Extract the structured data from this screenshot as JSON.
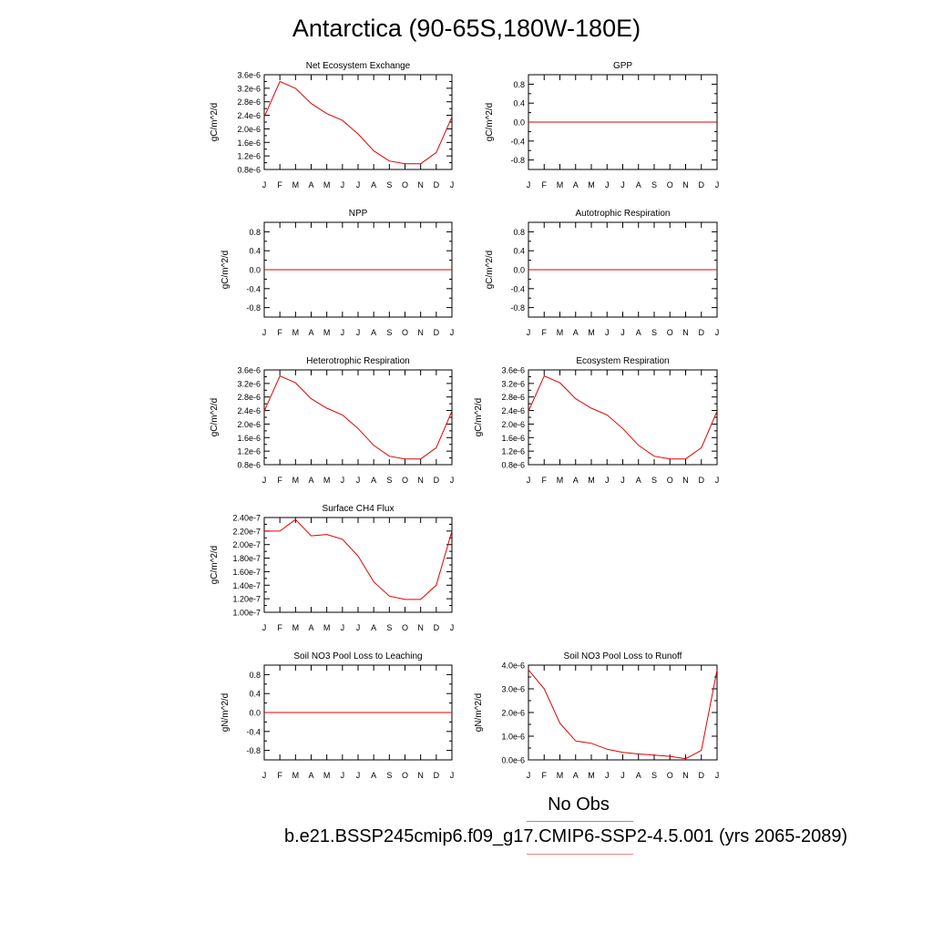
{
  "figure": {
    "title": "Antarctica (90-65S,180W-180E)",
    "legend": {
      "obs_label": "No Obs",
      "obs_color": "#8888ee",
      "case_label": "b.e21.BSSP245cmip6.f09_g17.CMIP6-SSP2-4.5.001 (yrs 2065-2089)",
      "case_color": "#ee8888"
    },
    "line_color": "#e00000"
  },
  "chart_data": [
    {
      "type": "line",
      "title": "Net Ecosystem Exchange",
      "ylabel": "gC/m^2/d",
      "categories": [
        "J",
        "F",
        "M",
        "A",
        "M",
        "J",
        "J",
        "A",
        "S",
        "O",
        "N",
        "D",
        "J"
      ],
      "ylim": [
        8e-07,
        3.6e-06
      ],
      "yticks": [
        8e-07,
        1.2e-06,
        1.6e-06,
        2e-06,
        2.4e-06,
        2.8e-06,
        3.2e-06,
        3.6e-06
      ],
      "ytick_labels": [
        "0.8e-6",
        "1.2e-6",
        "1.6e-6",
        "2.0e-6",
        "2.4e-6",
        "2.8e-6",
        "3.2e-6",
        "3.6e-6"
      ],
      "series": [
        {
          "values": [
            2.35e-06,
            3.4e-06,
            3.2e-06,
            2.75e-06,
            2.45e-06,
            2.25e-06,
            1.85e-06,
            1.35e-06,
            1.05e-06,
            9.7e-07,
            9.7e-07,
            1.3e-06,
            2.35e-06
          ]
        }
      ]
    },
    {
      "type": "line",
      "title": "GPP",
      "ylabel": "gC/m^2/d",
      "categories": [
        "J",
        "F",
        "M",
        "A",
        "M",
        "J",
        "J",
        "A",
        "S",
        "O",
        "N",
        "D",
        "J"
      ],
      "ylim": [
        -1.0,
        1.0
      ],
      "yticks": [
        -0.8,
        -0.4,
        0.0,
        0.4,
        0.8
      ],
      "ytick_labels": [
        "-0.8",
        "-0.4",
        "0.0",
        "0.4",
        "0.8"
      ],
      "series": [
        {
          "values": [
            0,
            0,
            0,
            0,
            0,
            0,
            0,
            0,
            0,
            0,
            0,
            0,
            0
          ]
        }
      ]
    },
    {
      "type": "line",
      "title": "NPP",
      "ylabel": "gC/m^2/d",
      "categories": [
        "J",
        "F",
        "M",
        "A",
        "M",
        "J",
        "J",
        "A",
        "S",
        "O",
        "N",
        "D",
        "J"
      ],
      "ylim": [
        -1.0,
        1.0
      ],
      "yticks": [
        -0.8,
        -0.4,
        0.0,
        0.4,
        0.8
      ],
      "ytick_labels": [
        "-0.8",
        "-0.4",
        "0.0",
        "0.4",
        "0.8"
      ],
      "series": [
        {
          "values": [
            0,
            0,
            0,
            0,
            0,
            0,
            0,
            0,
            0,
            0,
            0,
            0,
            0
          ]
        }
      ]
    },
    {
      "type": "line",
      "title": "Autotrophic Respiration",
      "ylabel": "gC/m^2/d",
      "categories": [
        "J",
        "F",
        "M",
        "A",
        "M",
        "J",
        "J",
        "A",
        "S",
        "O",
        "N",
        "D",
        "J"
      ],
      "ylim": [
        -1.0,
        1.0
      ],
      "yticks": [
        -0.8,
        -0.4,
        0.0,
        0.4,
        0.8
      ],
      "ytick_labels": [
        "-0.8",
        "-0.4",
        "0.0",
        "0.4",
        "0.8"
      ],
      "series": [
        {
          "values": [
            0,
            0,
            0,
            0,
            0,
            0,
            0,
            0,
            0,
            0,
            0,
            0,
            0
          ]
        }
      ]
    },
    {
      "type": "line",
      "title": "Heterotrophic Respiration",
      "ylabel": "gC/m^2/d",
      "categories": [
        "J",
        "F",
        "M",
        "A",
        "M",
        "J",
        "J",
        "A",
        "S",
        "O",
        "N",
        "D",
        "J"
      ],
      "ylim": [
        8e-07,
        3.6e-06
      ],
      "yticks": [
        8e-07,
        1.2e-06,
        1.6e-06,
        2e-06,
        2.4e-06,
        2.8e-06,
        3.2e-06,
        3.6e-06
      ],
      "ytick_labels": [
        "0.8e-6",
        "1.2e-6",
        "1.6e-6",
        "2.0e-6",
        "2.4e-6",
        "2.8e-6",
        "3.2e-6",
        "3.6e-6"
      ],
      "series": [
        {
          "values": [
            2.38e-06,
            3.42e-06,
            3.22e-06,
            2.75e-06,
            2.47e-06,
            2.27e-06,
            1.87e-06,
            1.37e-06,
            1.05e-06,
            9.7e-07,
            9.7e-07,
            1.3e-06,
            2.38e-06
          ]
        }
      ]
    },
    {
      "type": "line",
      "title": "Ecosystem Respiration",
      "ylabel": "gC/m^2/d",
      "categories": [
        "J",
        "F",
        "M",
        "A",
        "M",
        "J",
        "J",
        "A",
        "S",
        "O",
        "N",
        "D",
        "J"
      ],
      "ylim": [
        8e-07,
        3.6e-06
      ],
      "yticks": [
        8e-07,
        1.2e-06,
        1.6e-06,
        2e-06,
        2.4e-06,
        2.8e-06,
        3.2e-06,
        3.6e-06
      ],
      "ytick_labels": [
        "0.8e-6",
        "1.2e-6",
        "1.6e-6",
        "2.0e-6",
        "2.4e-6",
        "2.8e-6",
        "3.2e-6",
        "3.6e-6"
      ],
      "series": [
        {
          "values": [
            2.38e-06,
            3.42e-06,
            3.22e-06,
            2.75e-06,
            2.47e-06,
            2.27e-06,
            1.87e-06,
            1.37e-06,
            1.05e-06,
            9.7e-07,
            9.7e-07,
            1.3e-06,
            2.38e-06
          ]
        }
      ]
    },
    {
      "type": "line",
      "title": "Surface CH4 Flux",
      "ylabel": "gC/m^2/d",
      "categories": [
        "J",
        "F",
        "M",
        "A",
        "M",
        "J",
        "J",
        "A",
        "S",
        "O",
        "N",
        "D",
        "J"
      ],
      "ylim": [
        1e-07,
        2.4e-07
      ],
      "yticks": [
        1e-07,
        1.2e-07,
        1.4e-07,
        1.6e-07,
        1.8e-07,
        2e-07,
        2.2e-07,
        2.4e-07
      ],
      "ytick_labels": [
        "1.00e-7",
        "1.20e-7",
        "1.40e-7",
        "1.60e-7",
        "1.80e-7",
        "2.00e-7",
        "2.20e-7",
        "2.40e-7"
      ],
      "series": [
        {
          "values": [
            2.2e-07,
            2.2e-07,
            2.37e-07,
            2.13e-07,
            2.15e-07,
            2.08e-07,
            1.83e-07,
            1.45e-07,
            1.24e-07,
            1.19e-07,
            1.19e-07,
            1.4e-07,
            2.2e-07
          ]
        }
      ]
    },
    {
      "type": "line",
      "title": "Soil NO3 Pool Loss to Leaching",
      "ylabel": "gN/m^2/d",
      "categories": [
        "J",
        "F",
        "M",
        "A",
        "M",
        "J",
        "J",
        "A",
        "S",
        "O",
        "N",
        "D",
        "J"
      ],
      "ylim": [
        -1.0,
        1.0
      ],
      "yticks": [
        -0.8,
        -0.4,
        0.0,
        0.4,
        0.8
      ],
      "ytick_labels": [
        "-0.8",
        "-0.4",
        "0.0",
        "0.4",
        "0.8"
      ],
      "series": [
        {
          "values": [
            0,
            0,
            0,
            0,
            0,
            0,
            0,
            0,
            0,
            0,
            0,
            0,
            0
          ]
        }
      ]
    },
    {
      "type": "line",
      "title": "Soil NO3 Pool Loss to Runoff",
      "ylabel": "gN/m^2/d",
      "categories": [
        "J",
        "F",
        "M",
        "A",
        "M",
        "J",
        "J",
        "A",
        "S",
        "O",
        "N",
        "D",
        "J"
      ],
      "ylim": [
        0.0,
        4e-06
      ],
      "yticks": [
        0.0,
        1e-06,
        2e-06,
        3e-06,
        4e-06
      ],
      "ytick_labels": [
        "0.0e-6",
        "1.0e-6",
        "2.0e-6",
        "3.0e-6",
        "4.0e-6"
      ],
      "series": [
        {
          "values": [
            3.8e-06,
            3e-06,
            1.55e-06,
            8e-07,
            7e-07,
            4.5e-07,
            3.2e-07,
            2.5e-07,
            2e-07,
            1.5e-07,
            5e-08,
            4e-07,
            3.8e-06
          ]
        }
      ]
    }
  ]
}
